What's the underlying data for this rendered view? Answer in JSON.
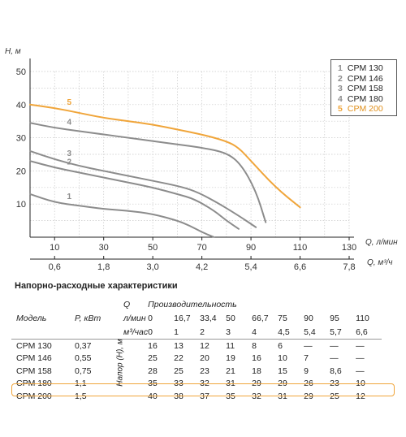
{
  "chart_data": {
    "type": "line",
    "ylabel": "H, м",
    "xlabel": "Q, л/мин",
    "x2label": "Q, м³/ч",
    "ylim": [
      0,
      50
    ],
    "xlim": [
      0,
      130
    ],
    "y_ticks": [
      "10",
      "20",
      "30",
      "40",
      "50"
    ],
    "x_ticks": [
      "10",
      "30",
      "50",
      "70",
      "90",
      "110",
      "130"
    ],
    "x2_ticks": [
      "0,6",
      "1,8",
      "3,0",
      "4,2",
      "5,4",
      "6,6",
      "7,8"
    ],
    "grid": true,
    "legend_position": "top-right",
    "series": [
      {
        "name": "CPM 130",
        "label": "1",
        "color": "#8c8c8c",
        "x": [
          0,
          10,
          20,
          30,
          40,
          50,
          60,
          65,
          70,
          75
        ],
        "y": [
          13,
          10.5,
          9.5,
          8.5,
          8,
          7,
          5,
          3.5,
          1.5,
          0
        ]
      },
      {
        "name": "CPM 146",
        "label": "2",
        "color": "#8c8c8c",
        "x": [
          0,
          10,
          20,
          30,
          40,
          50,
          60,
          67,
          75,
          80,
          85
        ],
        "y": [
          23,
          21,
          19.5,
          18,
          16.5,
          15,
          13,
          11.5,
          8,
          5,
          2.5
        ]
      },
      {
        "name": "CPM 158",
        "label": "3",
        "color": "#8c8c8c",
        "x": [
          0,
          10,
          20,
          30,
          40,
          50,
          60,
          67,
          75,
          85,
          92
        ],
        "y": [
          26,
          23.5,
          21.5,
          20,
          18.5,
          17,
          15.5,
          14,
          11,
          6.5,
          3
        ]
      },
      {
        "name": "CPM 180",
        "label": "4",
        "color": "#8c8c8c",
        "x": [
          0,
          10,
          20,
          30,
          40,
          50,
          60,
          70,
          80,
          86,
          92,
          96
        ],
        "y": [
          34.5,
          33,
          32,
          31,
          30,
          29,
          28,
          27,
          25.5,
          22,
          14,
          4.5
        ]
      },
      {
        "name": "CPM 200",
        "label": "5",
        "color": "#f0a53a",
        "x": [
          0,
          10,
          20,
          30,
          40,
          50,
          60,
          70,
          80,
          85,
          90,
          100,
          110
        ],
        "y": [
          40,
          39,
          37.5,
          36,
          35,
          34,
          32.5,
          31,
          29,
          27,
          23,
          15,
          9
        ]
      }
    ]
  },
  "legend": [
    {
      "num": "1",
      "name": "CPM 130",
      "color": "#8c8c8c"
    },
    {
      "num": "2",
      "name": "CPM 146",
      "color": "#8c8c8c"
    },
    {
      "num": "3",
      "name": "CPM 158",
      "color": "#8c8c8c"
    },
    {
      "num": "4",
      "name": "CPM 180",
      "color": "#8c8c8c"
    },
    {
      "num": "5",
      "name": "CPM 200",
      "color": "#f0a53a"
    }
  ],
  "table": {
    "title": "Напорно-расходные характеристики",
    "q_label": "Q",
    "perf_label": "Производительность",
    "model_label": "Модель",
    "power_label": "P, кВт",
    "lmin_label": "л/мин",
    "m3h_label": "м³/час",
    "head_label": "Напор (Н), м",
    "lmin": [
      "0",
      "16,7",
      "33,4",
      "50",
      "66,7",
      "75",
      "90",
      "95",
      "110"
    ],
    "m3h": [
      "0",
      "1",
      "2",
      "3",
      "4",
      "4,5",
      "5,4",
      "5,7",
      "6,6"
    ],
    "rows": [
      {
        "model": "CPM 130",
        "power": "0,37",
        "values": [
          "16",
          "13",
          "12",
          "11",
          "8",
          "6",
          "—",
          "—",
          "—"
        ]
      },
      {
        "model": "CPM 146",
        "power": "0,55",
        "values": [
          "25",
          "22",
          "20",
          "19",
          "16",
          "10",
          "7",
          "—",
          "—"
        ]
      },
      {
        "model": "CPM 158",
        "power": "0,75",
        "values": [
          "28",
          "25",
          "23",
          "21",
          "18",
          "15",
          "9",
          "8,6",
          "—"
        ]
      },
      {
        "model": "CPM 180",
        "power": "1,1",
        "values": [
          "35",
          "33",
          "32",
          "31",
          "29",
          "29",
          "26",
          "23",
          "10"
        ]
      },
      {
        "model": "CPM 200",
        "power": "1,5",
        "values": [
          "40",
          "38",
          "37",
          "35",
          "32",
          "31",
          "29",
          "25",
          "12"
        ]
      }
    ]
  }
}
